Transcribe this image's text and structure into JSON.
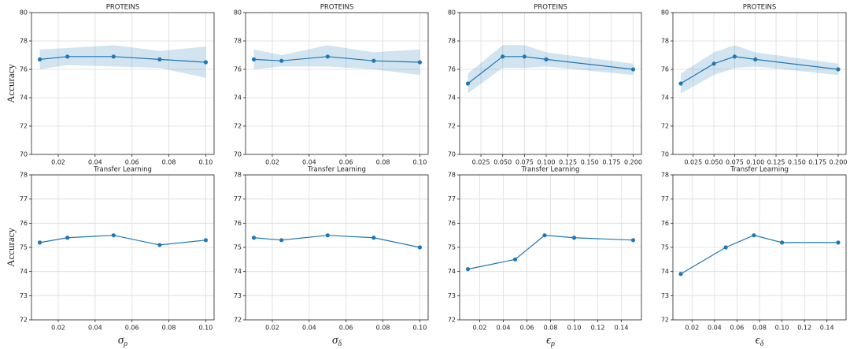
{
  "chart_data": [
    {
      "type": "line",
      "title": "PROTEINS",
      "ylabel": "Accuracy",
      "x": [
        0.01,
        0.025,
        0.05,
        0.075,
        0.1
      ],
      "series": [
        {
          "color": "#1f77b4",
          "values": [
            76.7,
            76.9,
            76.9,
            76.7,
            76.5
          ],
          "lower": [
            76.0,
            76.3,
            76.2,
            76.1,
            75.4
          ],
          "upper": [
            77.4,
            77.5,
            77.7,
            77.3,
            77.6
          ]
        }
      ],
      "xlim": [
        0.0055,
        0.1045
      ],
      "xticks": [
        0.02,
        0.04,
        0.06,
        0.08,
        {
          "value": 0.1,
          "label": "0.10"
        }
      ],
      "ylim": [
        70,
        80
      ],
      "yticks": [
        70,
        72,
        74,
        76,
        78,
        80
      ],
      "grid": true
    },
    {
      "type": "line",
      "title": "PROTEINS",
      "x": [
        0.01,
        0.025,
        0.05,
        0.075,
        0.1
      ],
      "series": [
        {
          "color": "#1f77b4",
          "values": [
            76.7,
            76.6,
            76.9,
            76.6,
            76.5
          ],
          "lower": [
            76.0,
            76.2,
            76.2,
            76.0,
            75.6
          ],
          "upper": [
            77.4,
            77.0,
            77.7,
            77.2,
            77.4
          ]
        }
      ],
      "xlim": [
        0.0055,
        0.1045
      ],
      "xticks": [
        0.02,
        0.04,
        0.06,
        0.08,
        {
          "value": 0.1,
          "label": "0.10"
        }
      ],
      "ylim": [
        70,
        80
      ],
      "yticks": [
        70,
        72,
        74,
        76,
        78,
        80
      ],
      "grid": true
    },
    {
      "type": "line",
      "title": "PROTEINS",
      "x": [
        0.01,
        0.05,
        0.075,
        0.1,
        0.2
      ],
      "series": [
        {
          "color": "#1f77b4",
          "values": [
            75.0,
            76.9,
            76.9,
            76.7,
            76.0
          ],
          "lower": [
            74.3,
            76.1,
            76.1,
            76.2,
            75.6
          ],
          "upper": [
            75.7,
            77.7,
            77.7,
            77.2,
            76.4
          ]
        }
      ],
      "xlim": [
        0.0005,
        0.2095
      ],
      "xticks": [
        0.025,
        {
          "value": 0.05,
          "label": "0.050"
        },
        0.075,
        {
          "value": 0.1,
          "label": "0.100"
        },
        0.125,
        {
          "value": 0.15,
          "label": "0.150"
        },
        0.175,
        {
          "value": 0.2,
          "label": "0.200"
        }
      ],
      "ylim": [
        70,
        80
      ],
      "yticks": [
        70,
        72,
        74,
        76,
        78,
        80
      ],
      "grid": true
    },
    {
      "type": "line",
      "title": "PROTEINS",
      "x": [
        0.01,
        0.05,
        0.075,
        0.1,
        0.2
      ],
      "series": [
        {
          "color": "#1f77b4",
          "values": [
            75.0,
            76.4,
            76.9,
            76.7,
            76.0
          ],
          "lower": [
            74.3,
            75.6,
            76.1,
            76.2,
            75.6
          ],
          "upper": [
            75.7,
            77.2,
            77.7,
            77.2,
            76.4
          ]
        }
      ],
      "xlim": [
        0.0005,
        0.2095
      ],
      "xticks": [
        0.025,
        {
          "value": 0.05,
          "label": "0.050"
        },
        0.075,
        {
          "value": 0.1,
          "label": "0.100"
        },
        0.125,
        {
          "value": 0.15,
          "label": "0.150"
        },
        0.175,
        {
          "value": 0.2,
          "label": "0.200"
        }
      ],
      "ylim": [
        70,
        80
      ],
      "yticks": [
        70,
        72,
        74,
        76,
        78,
        80
      ],
      "grid": true
    },
    {
      "type": "line",
      "title": "Transfer Learning",
      "ylabel": "Accuracy",
      "xlabel": {
        "symbol": "σ",
        "subscript": "ρ"
      },
      "x": [
        0.01,
        0.025,
        0.05,
        0.075,
        0.1
      ],
      "series": [
        {
          "color": "#1f77b4",
          "values": [
            75.2,
            75.4,
            75.5,
            75.1,
            75.3
          ]
        }
      ],
      "xlim": [
        0.0055,
        0.1045
      ],
      "xticks": [
        0.02,
        0.04,
        0.06,
        0.08,
        {
          "value": 0.1,
          "label": "0.10"
        }
      ],
      "ylim": [
        72,
        78
      ],
      "yticks": [
        72,
        73,
        74,
        75,
        76,
        77,
        78
      ],
      "grid": true
    },
    {
      "type": "line",
      "title": "Transfer Learning",
      "xlabel": {
        "symbol": "σ",
        "subscript": "δ"
      },
      "x": [
        0.01,
        0.025,
        0.05,
        0.075,
        0.1
      ],
      "series": [
        {
          "color": "#1f77b4",
          "values": [
            75.4,
            75.3,
            75.5,
            75.4,
            75.0
          ]
        }
      ],
      "xlim": [
        0.0055,
        0.1045
      ],
      "xticks": [
        0.02,
        0.04,
        0.06,
        0.08,
        {
          "value": 0.1,
          "label": "0.10"
        }
      ],
      "ylim": [
        72,
        78
      ],
      "yticks": [
        72,
        73,
        74,
        75,
        76,
        77,
        78
      ],
      "grid": true
    },
    {
      "type": "line",
      "title": "Transfer Learning",
      "xlabel": {
        "symbol": "ϵ",
        "subscript": "ρ"
      },
      "x": [
        0.01,
        0.05,
        0.075,
        0.1,
        0.15
      ],
      "series": [
        {
          "color": "#1f77b4",
          "values": [
            74.1,
            74.5,
            75.5,
            75.4,
            75.3
          ]
        }
      ],
      "xlim": [
        0.003,
        0.157
      ],
      "xticks": [
        0.02,
        0.04,
        0.06,
        0.08,
        {
          "value": 0.1,
          "label": "0.10"
        },
        0.12,
        0.14
      ],
      "ylim": [
        72,
        78
      ],
      "yticks": [
        72,
        73,
        74,
        75,
        76,
        77,
        78
      ],
      "grid": true
    },
    {
      "type": "line",
      "title": "Transfer Learning",
      "xlabel": {
        "symbol": "ϵ",
        "subscript": "δ"
      },
      "x": [
        0.01,
        0.05,
        0.075,
        0.1,
        0.15
      ],
      "series": [
        {
          "color": "#1f77b4",
          "values": [
            73.9,
            75.0,
            75.5,
            75.2,
            75.2
          ]
        }
      ],
      "xlim": [
        0.003,
        0.157
      ],
      "xticks": [
        0.02,
        0.04,
        0.06,
        0.08,
        {
          "value": 0.1,
          "label": "0.10"
        },
        0.12,
        0.14
      ],
      "ylim": [
        72,
        78
      ],
      "yticks": [
        72,
        73,
        74,
        75,
        76,
        77,
        78
      ],
      "grid": true
    }
  ]
}
